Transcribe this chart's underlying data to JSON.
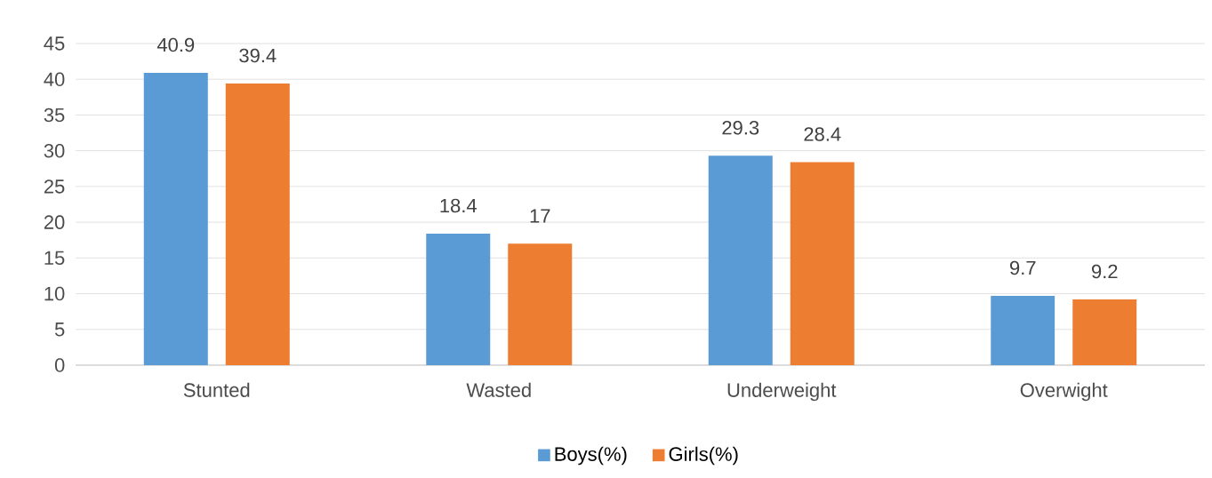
{
  "chart_data": {
    "type": "bar",
    "categories": [
      "Stunted",
      "Wasted",
      "Underweight",
      "Overwight"
    ],
    "series": [
      {
        "name": "Boys(%)",
        "color": "#5b9bd5",
        "values": [
          40.9,
          18.4,
          29.3,
          9.7
        ]
      },
      {
        "name": "Girls(%)",
        "color": "#ed7d31",
        "values": [
          39.4,
          17,
          28.4,
          9.2
        ]
      }
    ],
    "ylim": [
      0,
      45
    ],
    "yticks": [
      0,
      5,
      10,
      15,
      20,
      25,
      30,
      35,
      40,
      45
    ],
    "grid": "y",
    "legend": "bottom",
    "data_labels": true
  }
}
